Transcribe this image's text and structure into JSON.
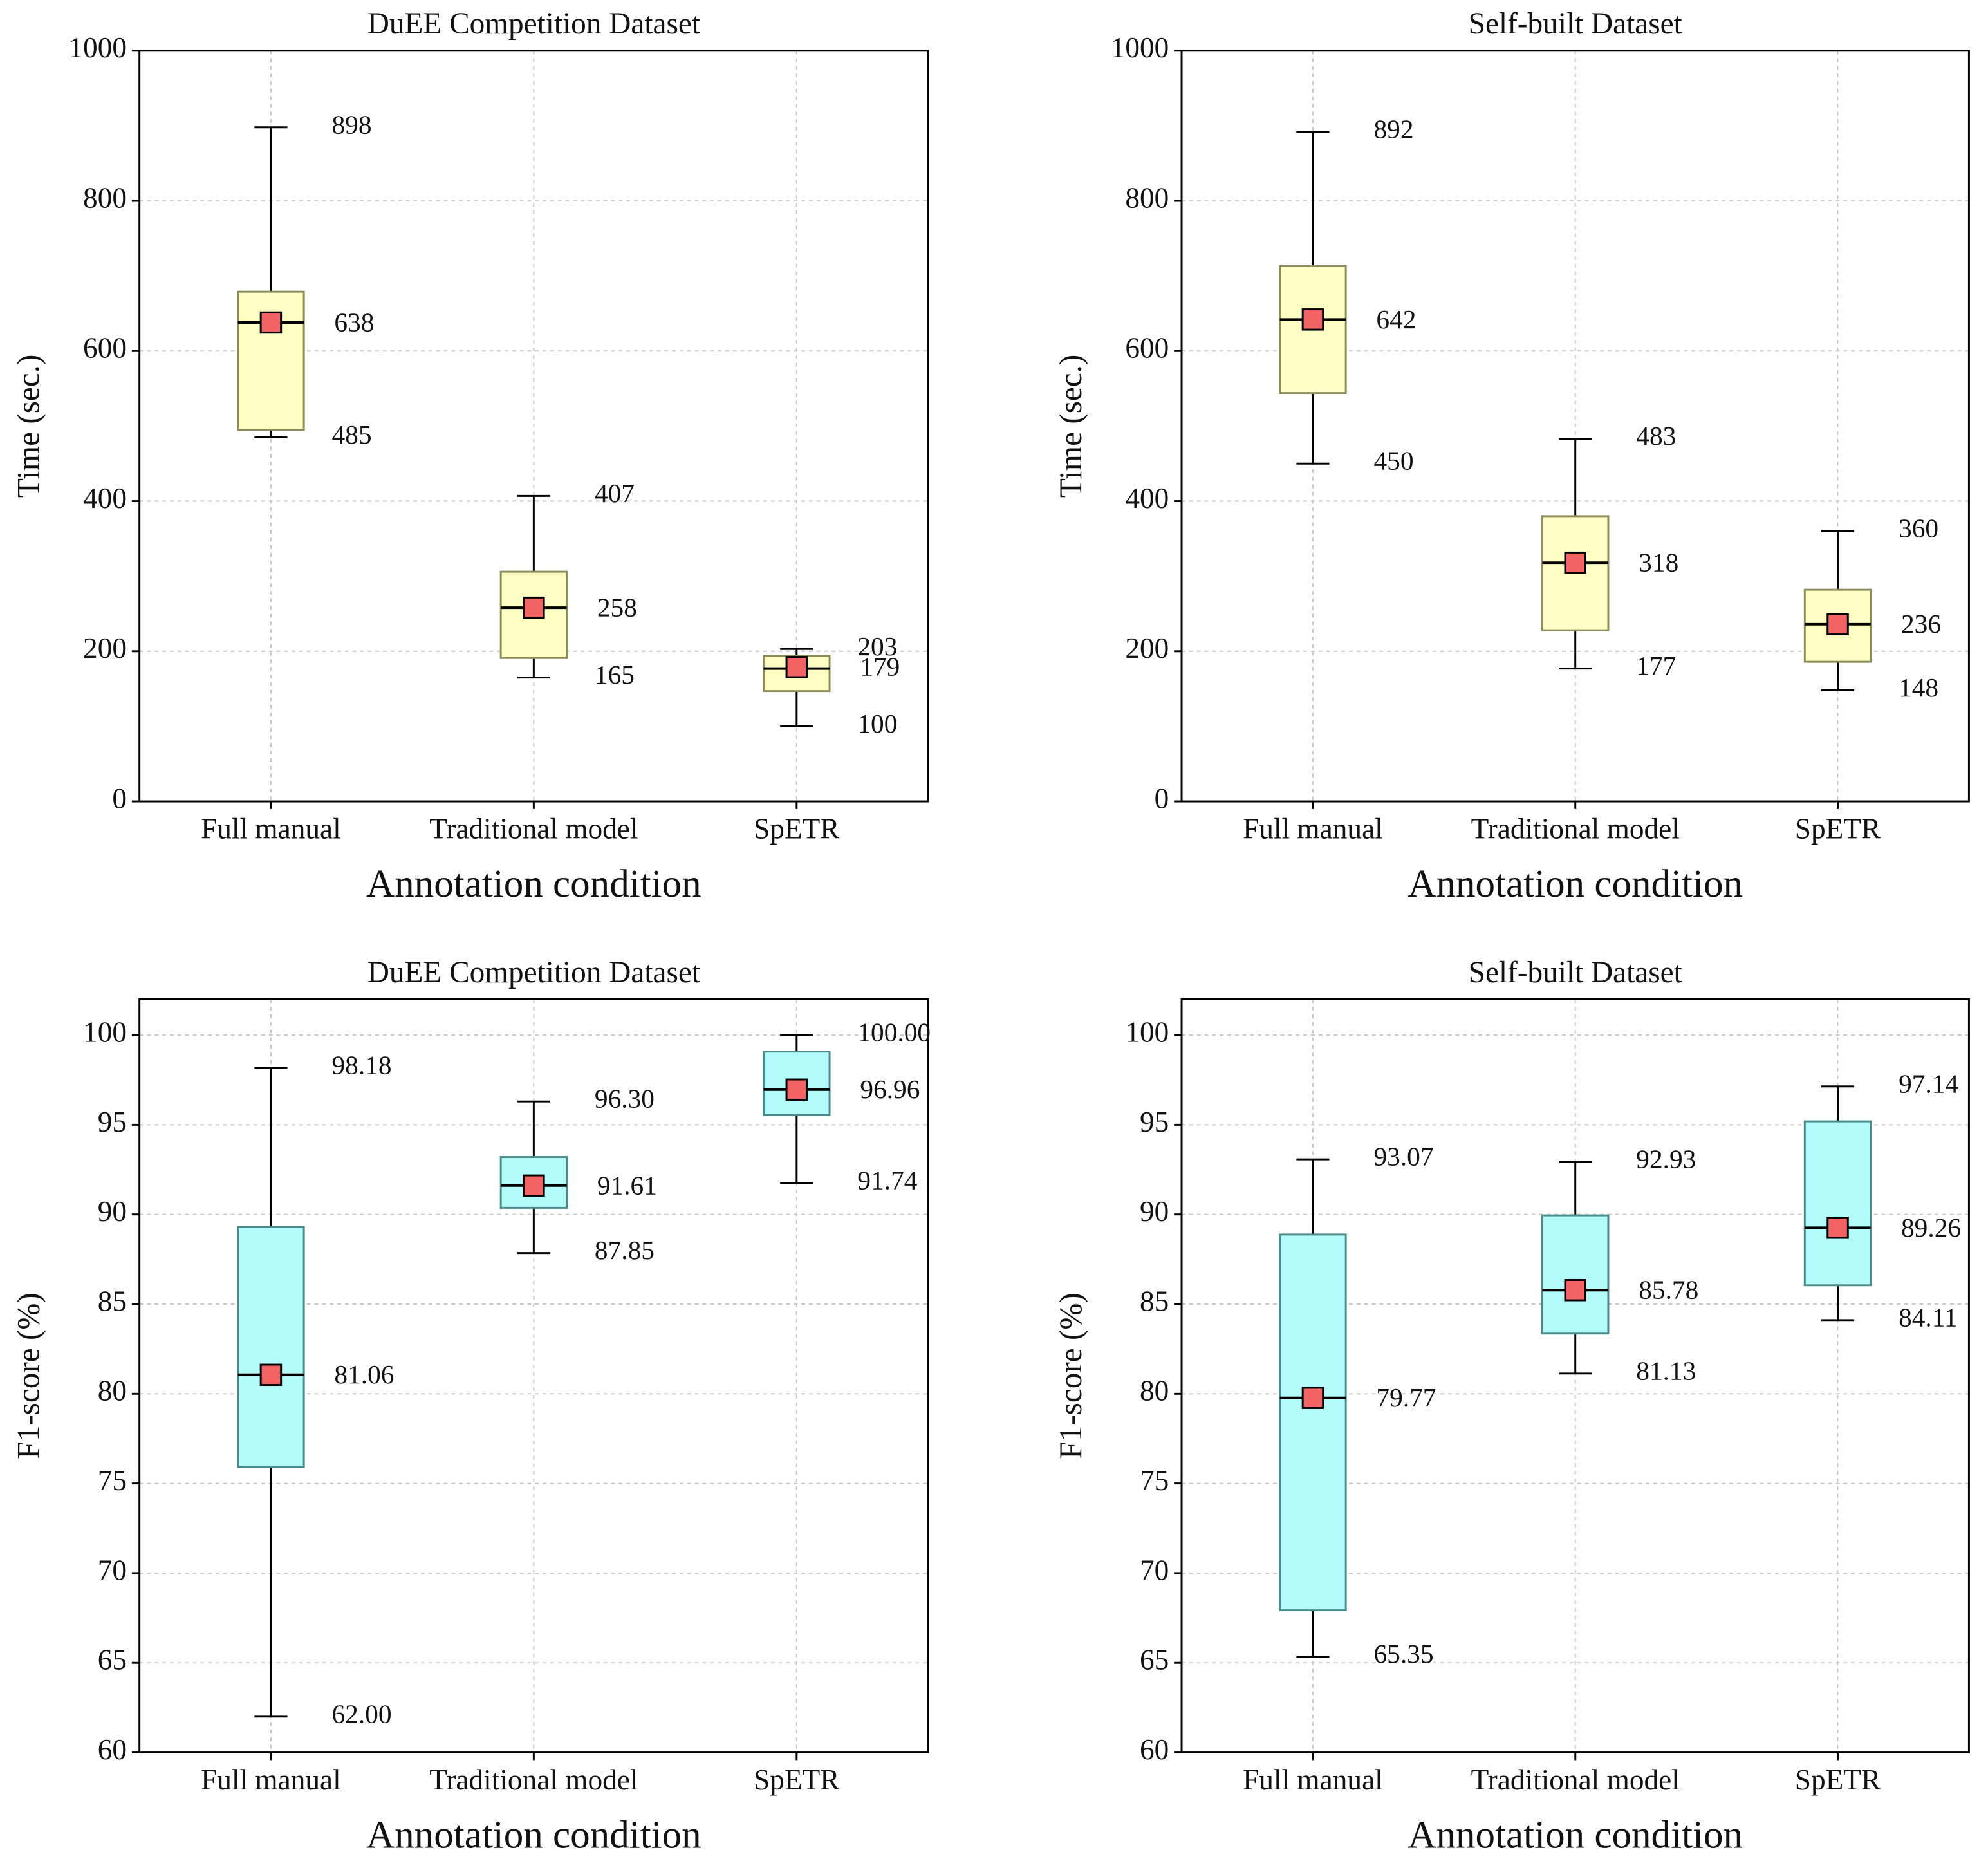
{
  "chart_data": [
    {
      "type": "box",
      "title": "DuEE Competition Dataset",
      "x_label": "Annotation condition",
      "y_label": "Time (sec.)",
      "categories": [
        "Full manual",
        "Traditional model",
        "SpETR"
      ],
      "ylim": [
        0,
        1000
      ],
      "yticks": [
        0,
        200,
        400,
        600,
        800,
        1000
      ],
      "grid": true,
      "color": "#ffffc4",
      "edge_color": "#8c8c5a",
      "mean_color": "#f26464",
      "boxes": [
        {
          "min": 485,
          "q1": 495,
          "median": 638,
          "mean": 638,
          "q3": 679,
          "max": 898
        },
        {
          "min": 165,
          "q1": 191,
          "median": 258,
          "mean": 258,
          "q3": 306,
          "max": 407
        },
        {
          "min": 100,
          "q1": 147,
          "median": 177,
          "mean": 179,
          "q3": 194,
          "max": 203
        }
      ]
    },
    {
      "type": "box",
      "title": "Self-built Dataset",
      "x_label": "Annotation condition",
      "y_label": "Time (sec.)",
      "categories": [
        "Full manual",
        "Traditional model",
        "SpETR"
      ],
      "ylim": [
        0,
        1000
      ],
      "yticks": [
        0,
        200,
        400,
        600,
        800,
        1000
      ],
      "grid": true,
      "color": "#ffffc4",
      "edge_color": "#8c8c5a",
      "mean_color": "#f26464",
      "boxes": [
        {
          "min": 450,
          "q1": 544,
          "median": 642,
          "mean": 642,
          "q3": 713,
          "max": 892
        },
        {
          "min": 177,
          "q1": 228,
          "median": 318,
          "mean": 318,
          "q3": 380,
          "max": 483
        },
        {
          "min": 148,
          "q1": 186,
          "median": 236,
          "mean": 236,
          "q3": 282,
          "max": 360
        }
      ]
    },
    {
      "type": "box",
      "title": "DuEE Competition Dataset",
      "x_label": "Annotation condition",
      "y_label": "F1-score (%)",
      "categories": [
        "Full manual",
        "Traditional model",
        "SpETR"
      ],
      "ylim": [
        60,
        102
      ],
      "yticks": [
        60,
        65,
        70,
        75,
        80,
        85,
        90,
        95,
        100
      ],
      "grid": true,
      "color": "#b4fcfc",
      "edge_color": "#4a8a8a",
      "mean_color": "#f26464",
      "boxes": [
        {
          "min": 62.0,
          "q1": 75.93,
          "median": 81.06,
          "mean": 81.06,
          "q3": 89.31,
          "max": 98.18,
          "value_labels": {
            "min": "62.00",
            "mean": "81.06",
            "max": "98.18"
          }
        },
        {
          "min": 87.85,
          "q1": 90.37,
          "median": 91.61,
          "mean": 91.61,
          "q3": 93.2,
          "max": 96.3,
          "value_labels": {
            "min": "87.85",
            "mean": "91.61",
            "max": "96.30"
          }
        },
        {
          "min": 91.74,
          "q1": 95.54,
          "median": 96.96,
          "mean": 96.96,
          "q3": 99.08,
          "max": 100.0,
          "value_labels": {
            "min": "91.74",
            "mean": "96.96",
            "max": "100.00"
          }
        }
      ]
    },
    {
      "type": "box",
      "title": "Self-built Dataset",
      "x_label": "Annotation condition",
      "y_label": "F1-score (%)",
      "categories": [
        "Full manual",
        "Traditional model",
        "SpETR"
      ],
      "ylim": [
        60,
        102
      ],
      "yticks": [
        60,
        65,
        70,
        75,
        80,
        85,
        90,
        95,
        100
      ],
      "grid": true,
      "color": "#b4fcfc",
      "edge_color": "#4a8a8a",
      "mean_color": "#f26464",
      "boxes": [
        {
          "min": 65.35,
          "q1": 67.93,
          "median": 79.77,
          "mean": 79.77,
          "q3": 88.88,
          "max": 93.07,
          "value_labels": {
            "min": "65.35",
            "mean": "79.77",
            "max": "93.07"
          }
        },
        {
          "min": 81.13,
          "q1": 83.36,
          "median": 85.78,
          "mean": 85.78,
          "q3": 89.95,
          "max": 92.93,
          "value_labels": {
            "min": "81.13",
            "mean": "85.78",
            "max": "92.93"
          }
        },
        {
          "min": 84.11,
          "q1": 86.05,
          "median": 89.26,
          "mean": 89.26,
          "q3": 95.19,
          "max": 97.14,
          "value_labels": {
            "min": "84.11",
            "mean": "89.26",
            "max": "97.14"
          }
        }
      ]
    }
  ]
}
